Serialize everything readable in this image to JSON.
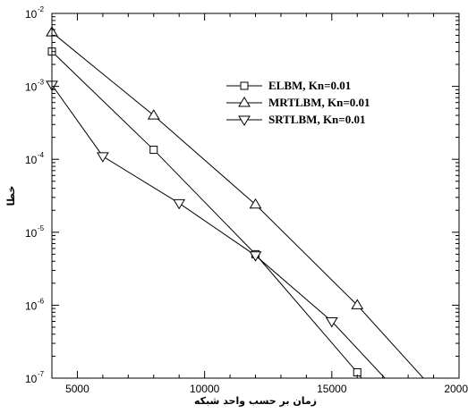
{
  "chart_data": {
    "type": "line",
    "xlabel": "زمان بر حسب واحد شبکه",
    "ylabel": "خطا",
    "xlim": [
      4000,
      20000
    ],
    "ylim": [
      1e-07,
      0.01
    ],
    "yscale": "log",
    "x_ticks": [
      {
        "value": 5000,
        "label": "5000"
      },
      {
        "value": 10000,
        "label": "10000"
      },
      {
        "value": 15000,
        "label": "15000"
      },
      {
        "value": 20000,
        "label": "20000"
      }
    ],
    "y_ticks": [
      {
        "value": 0.01,
        "base": "10",
        "exp": "-2"
      },
      {
        "value": 0.001,
        "base": "10",
        "exp": "-3"
      },
      {
        "value": 0.0001,
        "base": "10",
        "exp": "-4"
      },
      {
        "value": 1e-05,
        "base": "10",
        "exp": "-5"
      },
      {
        "value": 1e-06,
        "base": "10",
        "exp": "-6"
      },
      {
        "value": 1e-07,
        "base": "10",
        "exp": "-7"
      }
    ],
    "grid": false,
    "legend_position": "top-right",
    "series": [
      {
        "name": "ELBM, Kn=0.01",
        "marker": "square",
        "x": [
          4000,
          8000,
          12000,
          16000,
          16500
        ],
        "y": [
          0.003,
          0.000135,
          5e-06,
          1.2e-07,
          7e-08
        ]
      },
      {
        "name": "MRTLBM, Kn=0.01",
        "marker": "triangle-up",
        "x": [
          4000,
          8000,
          12000,
          16000,
          19000
        ],
        "y": [
          0.0055,
          0.0004,
          2.4e-05,
          1e-06,
          7e-08
        ]
      },
      {
        "name": "SRTLBM, Kn=0.01",
        "marker": "triangle-down",
        "x": [
          4000,
          6000,
          9000,
          12000,
          15000,
          17500
        ],
        "y": [
          0.00105,
          0.00011,
          2.5e-05,
          4.8e-06,
          6e-07,
          7e-08
        ]
      }
    ]
  }
}
